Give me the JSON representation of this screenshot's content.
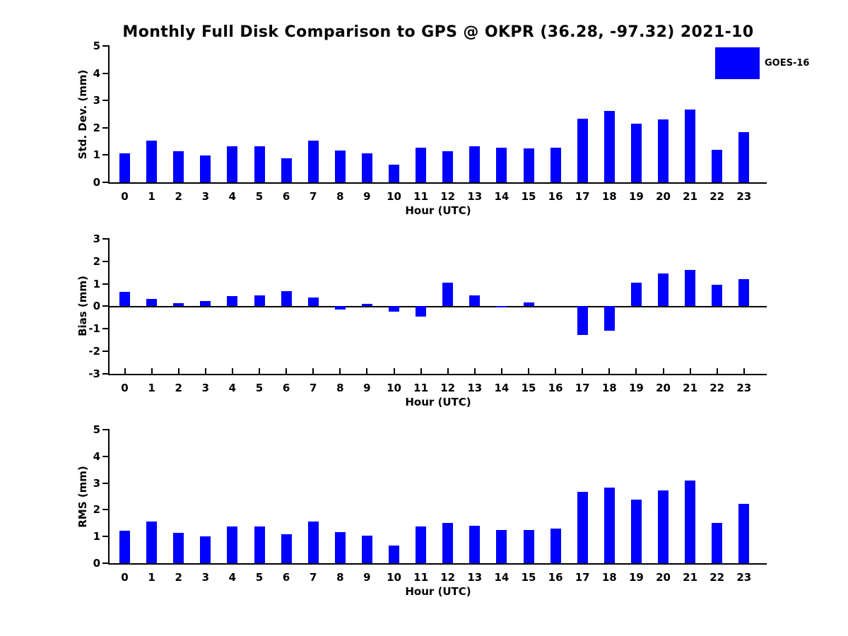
{
  "title": "Monthly Full Disk Comparison to GPS @ OKPR (36.28, -97.32) 2021-10",
  "legend": {
    "label": "GOES-16",
    "color": "#0000ff"
  },
  "colors": {
    "bar": "#0000ff",
    "axis": "#000000",
    "text": "#000000"
  },
  "chart_data": [
    {
      "type": "bar",
      "title": "",
      "ylabel": "Std. Dev. (mm)",
      "xlabel": "Hour (UTC)",
      "ylim": [
        0,
        5
      ],
      "yticks": [
        0,
        1,
        2,
        3,
        4,
        5
      ],
      "grid": false,
      "legend_position": "upper right",
      "series": [
        {
          "name": "GOES-16"
        }
      ],
      "categories": [
        "0",
        "1",
        "2",
        "3",
        "4",
        "5",
        "6",
        "7",
        "8",
        "9",
        "10",
        "11",
        "12",
        "13",
        "14",
        "15",
        "16",
        "17",
        "18",
        "19",
        "20",
        "21",
        "22",
        "23"
      ],
      "values": [
        1.05,
        1.52,
        1.13,
        0.99,
        1.31,
        1.31,
        0.87,
        1.52,
        1.16,
        1.06,
        0.64,
        1.28,
        1.13,
        1.32,
        1.26,
        1.24,
        1.28,
        2.33,
        2.62,
        2.15,
        2.31,
        2.67,
        1.18,
        1.85
      ]
    },
    {
      "type": "bar",
      "title": "",
      "ylabel": "Bias (mm)",
      "xlabel": "Hour (UTC)",
      "ylim": [
        -3,
        3
      ],
      "yticks": [
        -3,
        -2,
        -1,
        0,
        1,
        2,
        3
      ],
      "grid": false,
      "series": [
        {
          "name": "GOES-16"
        }
      ],
      "categories": [
        "0",
        "1",
        "2",
        "3",
        "4",
        "5",
        "6",
        "7",
        "8",
        "9",
        "10",
        "11",
        "12",
        "13",
        "14",
        "15",
        "16",
        "17",
        "18",
        "19",
        "20",
        "21",
        "22",
        "23"
      ],
      "values": [
        0.64,
        0.33,
        0.12,
        0.24,
        0.46,
        0.49,
        0.66,
        0.39,
        -0.16,
        0.09,
        -0.24,
        -0.48,
        1.05,
        0.49,
        -0.06,
        0.17,
        0.0,
        -1.29,
        -1.08,
        1.04,
        1.46,
        1.6,
        0.94,
        1.2
      ]
    },
    {
      "type": "bar",
      "title": "",
      "ylabel": "RMS (mm)",
      "xlabel": "Hour (UTC)",
      "ylim": [
        0,
        5
      ],
      "yticks": [
        0,
        1,
        2,
        3,
        4,
        5
      ],
      "grid": false,
      "series": [
        {
          "name": "GOES-16"
        }
      ],
      "categories": [
        "0",
        "1",
        "2",
        "3",
        "4",
        "5",
        "6",
        "7",
        "8",
        "9",
        "10",
        "11",
        "12",
        "13",
        "14",
        "15",
        "16",
        "17",
        "18",
        "19",
        "20",
        "21",
        "22",
        "23"
      ],
      "values": [
        1.22,
        1.55,
        1.14,
        1.0,
        1.37,
        1.37,
        1.08,
        1.55,
        1.16,
        1.04,
        0.65,
        1.37,
        1.52,
        1.39,
        1.24,
        1.24,
        1.29,
        2.68,
        2.83,
        2.39,
        2.72,
        3.1,
        1.5,
        2.21
      ]
    }
  ]
}
